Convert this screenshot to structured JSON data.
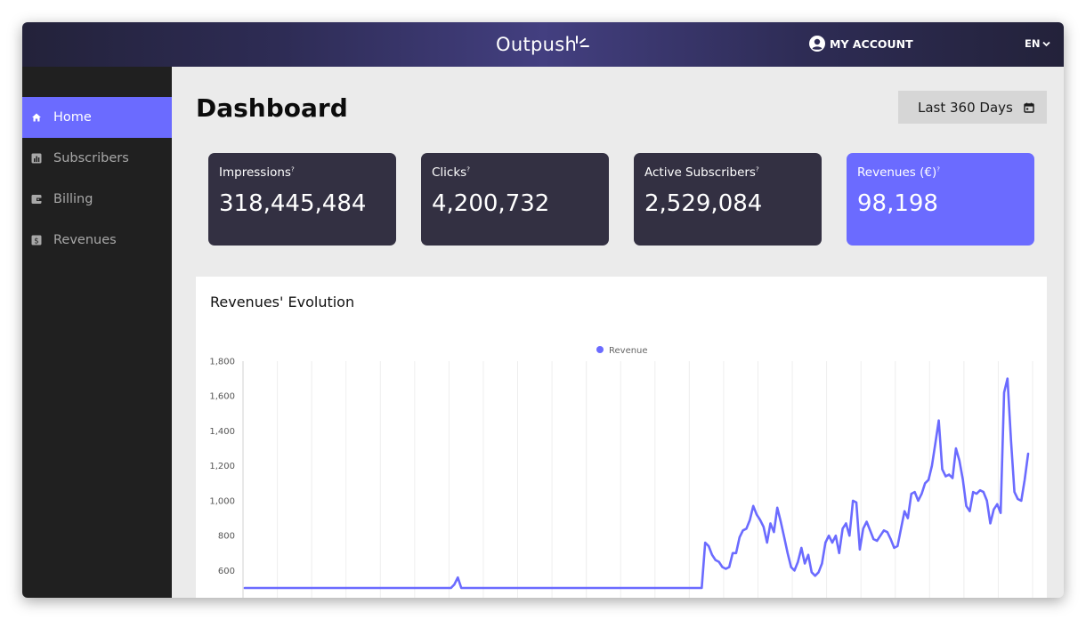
{
  "app": {
    "brand": "Outpush",
    "account_label": "MY ACCOUNT",
    "language": "EN"
  },
  "sidebar": {
    "items": [
      {
        "label": "Home",
        "icon": "home-icon",
        "active": true
      },
      {
        "label": "Subscribers",
        "icon": "bar-chart-icon",
        "active": false
      },
      {
        "label": "Billing",
        "icon": "wallet-icon",
        "active": false
      },
      {
        "label": "Revenues",
        "icon": "dollar-icon",
        "active": false
      }
    ]
  },
  "main": {
    "title": "Dashboard",
    "date_range": "Last 360 Days",
    "cards": [
      {
        "label": "Impressions",
        "value": "318,445,484"
      },
      {
        "label": "Clicks",
        "value": "4,200,732"
      },
      {
        "label": "Active Subscribers",
        "value": "2,529,084"
      },
      {
        "label": "Revenues (€)",
        "value": "98,198"
      }
    ],
    "chart_title": "Revenues' Evolution"
  },
  "colors": {
    "accent": "#6b6bff",
    "card_dark": "#333042",
    "sidebar_bg": "#202020"
  },
  "chart_data": {
    "type": "line",
    "title": "Revenues' Evolution",
    "series": [
      {
        "name": "Revenue",
        "color": "#6b6bff",
        "values": [
          500,
          500,
          500,
          500,
          500,
          500,
          500,
          500,
          500,
          500,
          500,
          500,
          500,
          500,
          500,
          500,
          500,
          500,
          500,
          500,
          500,
          500,
          500,
          500,
          500,
          500,
          500,
          500,
          500,
          500,
          500,
          500,
          500,
          500,
          500,
          500,
          500,
          500,
          500,
          500,
          500,
          500,
          500,
          500,
          500,
          500,
          500,
          500,
          500,
          500,
          500,
          500,
          500,
          500,
          500,
          500,
          500,
          500,
          500,
          500,
          500,
          520,
          560,
          500,
          500,
          500,
          500,
          500,
          500,
          500,
          500,
          500,
          500,
          500,
          500,
          500,
          500,
          500,
          500,
          500,
          500,
          500,
          500,
          500,
          500,
          500,
          500,
          500,
          500,
          500,
          500,
          500,
          500,
          500,
          500,
          500,
          500,
          500,
          500,
          500,
          500,
          500,
          500,
          500,
          500,
          500,
          500,
          500,
          500,
          500,
          500,
          500,
          500,
          500,
          500,
          500,
          500,
          500,
          500,
          500,
          500,
          500,
          500,
          500,
          500,
          500,
          500,
          500,
          500,
          500,
          500,
          500,
          500,
          500,
          760,
          740,
          690,
          660,
          650,
          620,
          610,
          620,
          700,
          700,
          790,
          830,
          840,
          890,
          970,
          920,
          890,
          850,
          760,
          870,
          820,
          960,
          880,
          790,
          700,
          620,
          600,
          650,
          730,
          640,
          690,
          590,
          570,
          590,
          640,
          760,
          800,
          760,
          800,
          700,
          840,
          870,
          800,
          1000,
          990,
          720,
          840,
          880,
          830,
          780,
          770,
          800,
          830,
          820,
          780,
          730,
          740,
          840,
          940,
          900,
          1040,
          1050,
          1000,
          1040,
          1100,
          1120,
          1200,
          1330,
          1460,
          1180,
          1140,
          1150,
          1130,
          1300,
          1230,
          1120,
          970,
          940,
          1050,
          1040,
          1060,
          1050,
          1000,
          870,
          950,
          980,
          930,
          1620,
          1700,
          1350,
          1050,
          1010,
          1000,
          1120,
          1270
        ]
      }
    ],
    "y_ticks": [
      "1,800",
      "1,600",
      "1,400",
      "1,200",
      "1,000",
      "800",
      "600"
    ],
    "ylim": [
      500,
      1800
    ],
    "legend": "top-center",
    "legend_entries": [
      "Revenue"
    ],
    "grid": true
  }
}
